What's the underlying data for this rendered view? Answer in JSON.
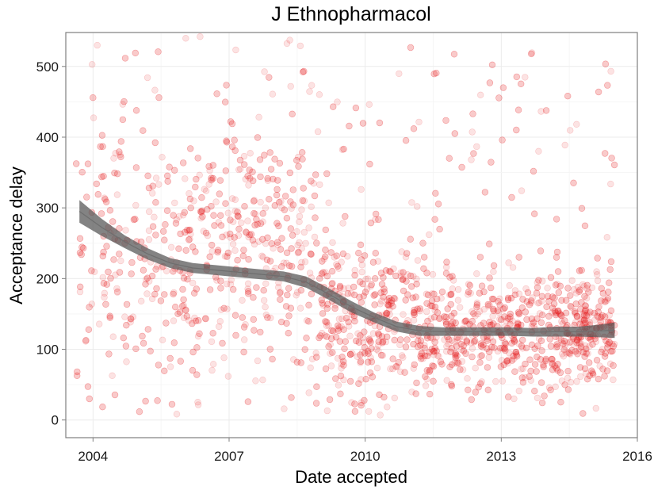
{
  "chart_data": {
    "type": "scatter",
    "title": "J Ethnopharmacol",
    "xlabel": "Date accepted",
    "ylabel": "Acceptance delay",
    "xlim": [
      2003.4,
      2016.0
    ],
    "ylim": [
      -25,
      548
    ],
    "x_ticks": [
      2004,
      2007,
      2010,
      2013,
      2016
    ],
    "x_tick_labels": [
      "2004",
      "2007",
      "2010",
      "2013",
      "2016"
    ],
    "y_ticks": [
      0,
      100,
      200,
      300,
      400,
      500
    ],
    "y_tick_labels": [
      "0",
      "100",
      "200",
      "300",
      "400",
      "500"
    ],
    "grid": true,
    "legend": "none",
    "point_color": "#e41a1c",
    "smooth_color": "#595959",
    "series": [
      {
        "kind": "points",
        "x_range": [
          2003.6,
          2015.5
        ],
        "y_range": [
          0,
          545
        ],
        "approx_count": 2600,
        "density_by_period": [
          {
            "from": 2003.6,
            "to": 2009.0,
            "center": 230,
            "spread": 170
          },
          {
            "from": 2009.0,
            "to": 2011.0,
            "center": 150,
            "spread": 110
          },
          {
            "from": 2011.0,
            "to": 2015.5,
            "center": 125,
            "spread": 75
          }
        ]
      },
      {
        "kind": "smooth",
        "x": [
          2003.7,
          2004.2,
          2004.7,
          2005.2,
          2005.7,
          2006.2,
          2006.7,
          2007.2,
          2007.7,
          2008.2,
          2008.7,
          2009.2,
          2009.7,
          2010.2,
          2010.7,
          2011.2,
          2011.7,
          2012.2,
          2012.7,
          2013.2,
          2013.7,
          2014.2,
          2014.7,
          2015.2,
          2015.5
        ],
        "y": [
          295,
          272,
          252,
          235,
          222,
          215,
          212,
          209,
          206,
          203,
          195,
          178,
          160,
          145,
          132,
          126,
          125,
          125,
          125,
          125,
          124,
          125,
          125,
          126,
          127
        ],
        "band": [
          16,
          12,
          9,
          8,
          7,
          7,
          7,
          7,
          7,
          7,
          8,
          8,
          8,
          7,
          7,
          7,
          6,
          6,
          6,
          6,
          6,
          7,
          7,
          9,
          11
        ]
      }
    ]
  }
}
